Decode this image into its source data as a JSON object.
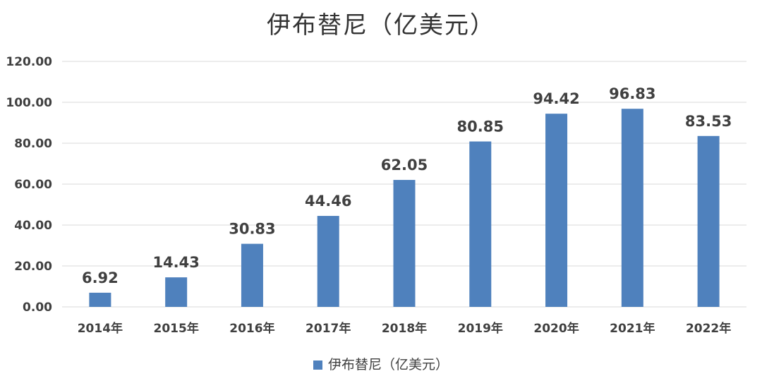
{
  "chart_data": {
    "type": "bar",
    "title": "伊布替尼（亿美元）",
    "categories": [
      "2014年",
      "2015年",
      "2016年",
      "2017年",
      "2018年",
      "2019年",
      "2020年",
      "2021年",
      "2022年"
    ],
    "series": [
      {
        "name": "伊布替尼（亿美元）",
        "values": [
          6.92,
          14.43,
          30.83,
          44.46,
          62.05,
          80.85,
          94.42,
          96.83,
          83.53
        ]
      }
    ],
    "data_labels": [
      "6.92",
      "14.43",
      "30.83",
      "44.46",
      "62.05",
      "80.85",
      "94.42",
      "96.83",
      "83.53"
    ],
    "ylim": [
      0,
      120
    ],
    "yticks": [
      "0.00",
      "20.00",
      "40.00",
      "60.00",
      "80.00",
      "100.00",
      "120.00"
    ],
    "ytick_values": [
      0,
      20,
      40,
      60,
      80,
      100,
      120
    ],
    "xlabel": "",
    "ylabel": "",
    "grid": true,
    "legend_position": "bottom",
    "bar_color": "#4F81BD",
    "grid_color": "#D9D9D9"
  }
}
